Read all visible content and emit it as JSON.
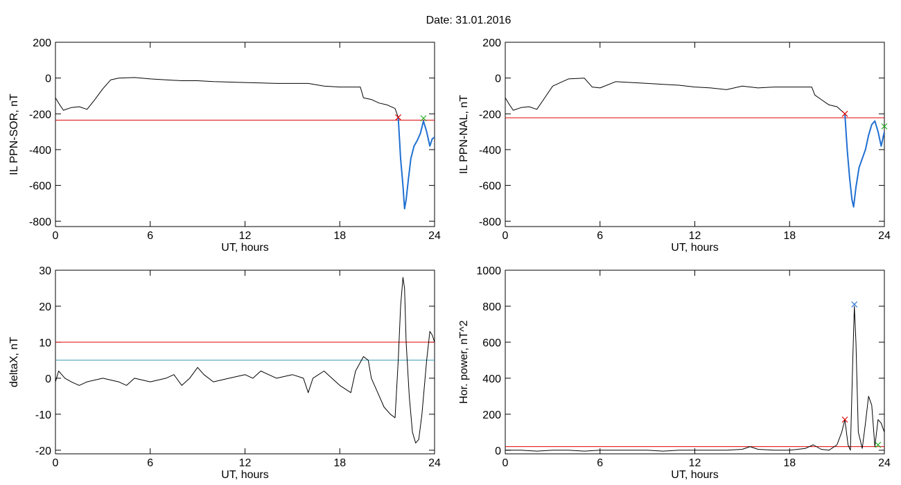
{
  "figure": {
    "title": "Date:  31.01.2016"
  },
  "chart_data": [
    {
      "type": "line",
      "ylabel": "IL PPN-SOR, nT",
      "xlabel": "UT, hours",
      "xlim": [
        0,
        24
      ],
      "ylim": [
        -830,
        200
      ],
      "xticks": [
        0,
        6,
        12,
        18,
        24
      ],
      "yticks": [
        -800,
        -600,
        -400,
        -200,
        0,
        200
      ],
      "series": [
        {
          "color": "#000000",
          "x": [
            0,
            0.2,
            0.5,
            1.0,
            1.5,
            2.0,
            2.5,
            3.0,
            3.5,
            4.0,
            5.0,
            6.0,
            7.0,
            8.0,
            9.0,
            10.0,
            12.0,
            14.0,
            16.0,
            17.0,
            18.0,
            19.3,
            19.5,
            20.0,
            20.5,
            21.0,
            21.5,
            21.7
          ],
          "y": [
            -110,
            -140,
            -180,
            -165,
            -160,
            -175,
            -120,
            -60,
            -10,
            0,
            3,
            -5,
            -10,
            -15,
            -15,
            -20,
            -25,
            -30,
            -30,
            -45,
            -50,
            -50,
            -110,
            -120,
            -140,
            -150,
            -170,
            -220
          ]
        },
        {
          "color": "#1f6fd1",
          "x": [
            21.7,
            21.85,
            22.0,
            22.1,
            22.2,
            22.35,
            22.5,
            22.7,
            22.9,
            23.1,
            23.3,
            23.5,
            23.7,
            23.85,
            24.0
          ],
          "y": [
            -220,
            -450,
            -600,
            -730,
            -680,
            -560,
            -450,
            -380,
            -350,
            -310,
            -240,
            -300,
            -380,
            -340,
            -330
          ]
        }
      ],
      "hlines": [
        {
          "y": -235,
          "color": "#e00000"
        }
      ],
      "markers": [
        {
          "x": 21.7,
          "y": -220,
          "color": "#e00000"
        },
        {
          "x": 23.3,
          "y": -225,
          "color": "#20b020"
        }
      ]
    },
    {
      "type": "line",
      "ylabel": "IL PPN-NAL, nT",
      "xlabel": "UT, hours",
      "xlim": [
        0,
        24
      ],
      "ylim": [
        -830,
        200
      ],
      "xticks": [
        0,
        6,
        12,
        18,
        24
      ],
      "yticks": [
        -800,
        -600,
        -400,
        -200,
        0,
        200
      ],
      "series": [
        {
          "color": "#000000",
          "x": [
            0,
            0.2,
            0.5,
            1.0,
            1.5,
            2.0,
            2.5,
            3.0,
            3.5,
            4.0,
            5.0,
            5.5,
            6.0,
            7.0,
            8.0,
            9.0,
            10.0,
            11.0,
            12.0,
            13.0,
            14.0,
            15.0,
            16.0,
            17.0,
            18.0,
            19.0,
            19.4,
            19.6,
            20.0,
            20.5,
            21.0,
            21.5
          ],
          "y": [
            -110,
            -140,
            -180,
            -165,
            -160,
            -175,
            -110,
            -45,
            -25,
            -5,
            0,
            -50,
            -55,
            -20,
            -25,
            -30,
            -35,
            -40,
            -50,
            -55,
            -65,
            -45,
            -55,
            -50,
            -50,
            -50,
            -50,
            -95,
            -120,
            -150,
            -160,
            -200
          ]
        },
        {
          "color": "#1f6fd1",
          "x": [
            21.5,
            21.65,
            21.8,
            21.95,
            22.05,
            22.2,
            22.4,
            22.6,
            22.8,
            23.0,
            23.2,
            23.4,
            23.6,
            23.8,
            24.0
          ],
          "y": [
            -200,
            -400,
            -560,
            -680,
            -720,
            -610,
            -500,
            -450,
            -400,
            -320,
            -260,
            -240,
            -300,
            -380,
            -300
          ]
        }
      ],
      "hlines": [
        {
          "y": -222,
          "color": "#e00000"
        }
      ],
      "markers": [
        {
          "x": 21.5,
          "y": -200,
          "color": "#e00000"
        },
        {
          "x": 24.0,
          "y": -270,
          "color": "#20b020"
        }
      ]
    },
    {
      "type": "line",
      "ylabel": "deltaX, nT",
      "xlabel": "UT, hours",
      "xlim": [
        0,
        24
      ],
      "ylim": [
        -21,
        30
      ],
      "xticks": [
        0,
        6,
        12,
        18,
        24
      ],
      "yticks": [
        -20,
        -10,
        0,
        10,
        20,
        30
      ],
      "series": [
        {
          "color": "#000000",
          "x": [
            0,
            0.2,
            0.4,
            0.6,
            1.0,
            1.5,
            2.0,
            3.0,
            4.0,
            4.5,
            5.0,
            6.0,
            7.0,
            7.5,
            8.0,
            8.5,
            9.0,
            9.4,
            10.0,
            11.0,
            12.0,
            12.5,
            13.0,
            14.0,
            15.0,
            15.7,
            16.0,
            16.3,
            17.0,
            18.0,
            18.7,
            19.0,
            19.5,
            19.8,
            20.0,
            20.4,
            20.8,
            21.2,
            21.5,
            21.7,
            21.85,
            22.0,
            22.1,
            22.2,
            22.4,
            22.6,
            22.8,
            23.0,
            23.2,
            23.5,
            23.7,
            23.85,
            24.0
          ],
          "y": [
            -1,
            2,
            1,
            0,
            -1,
            -2,
            -1,
            0,
            -1,
            -2,
            0,
            -1,
            0,
            1,
            -2,
            0,
            3,
            1,
            -1,
            0,
            1,
            0,
            2,
            0,
            1,
            0,
            -4,
            0,
            2,
            -2,
            -4,
            2,
            6,
            5,
            0,
            -4,
            -8,
            -10,
            -11,
            5,
            20,
            28,
            25,
            10,
            -5,
            -15,
            -18,
            -17,
            -10,
            5,
            13,
            12,
            10
          ]
        }
      ],
      "hlines": [
        {
          "y": 10,
          "color": "#e00000"
        },
        {
          "y": 5,
          "color": "#2a9ab0"
        }
      ],
      "markers": []
    },
    {
      "type": "line",
      "ylabel": "Hor. power, nT^2",
      "xlabel": "UT, hours",
      "xlim": [
        0,
        24
      ],
      "ylim": [
        -20,
        1000
      ],
      "xticks": [
        0,
        6,
        12,
        18,
        24
      ],
      "yticks": [
        0,
        200,
        400,
        600,
        800,
        1000
      ],
      "series": [
        {
          "color": "#000000",
          "x": [
            0,
            1,
            2,
            3,
            4,
            5,
            6,
            7,
            8,
            9,
            10,
            11,
            12,
            13,
            14,
            15,
            15.5,
            16,
            17,
            18,
            19,
            19.5,
            20,
            20.5,
            21.0,
            21.3,
            21.5,
            21.7,
            21.85,
            22.0,
            22.1,
            22.2,
            22.35,
            22.6,
            22.8,
            23.0,
            23.2,
            23.4,
            23.6,
            23.8,
            24.0
          ],
          "y": [
            0,
            0,
            -5,
            0,
            0,
            -5,
            0,
            0,
            0,
            0,
            -5,
            0,
            0,
            0,
            0,
            5,
            20,
            5,
            0,
            0,
            10,
            30,
            5,
            0,
            30,
            100,
            170,
            30,
            0,
            500,
            800,
            600,
            100,
            10,
            150,
            300,
            250,
            20,
            170,
            150,
            100
          ]
        }
      ],
      "hlines": [
        {
          "y": 20,
          "color": "#e00000"
        }
      ],
      "markers": [
        {
          "x": 21.5,
          "y": 170,
          "color": "#e00000"
        },
        {
          "x": 22.1,
          "y": 810,
          "color": "#1f6fd1"
        },
        {
          "x": 23.6,
          "y": 30,
          "color": "#20b020"
        }
      ]
    }
  ]
}
